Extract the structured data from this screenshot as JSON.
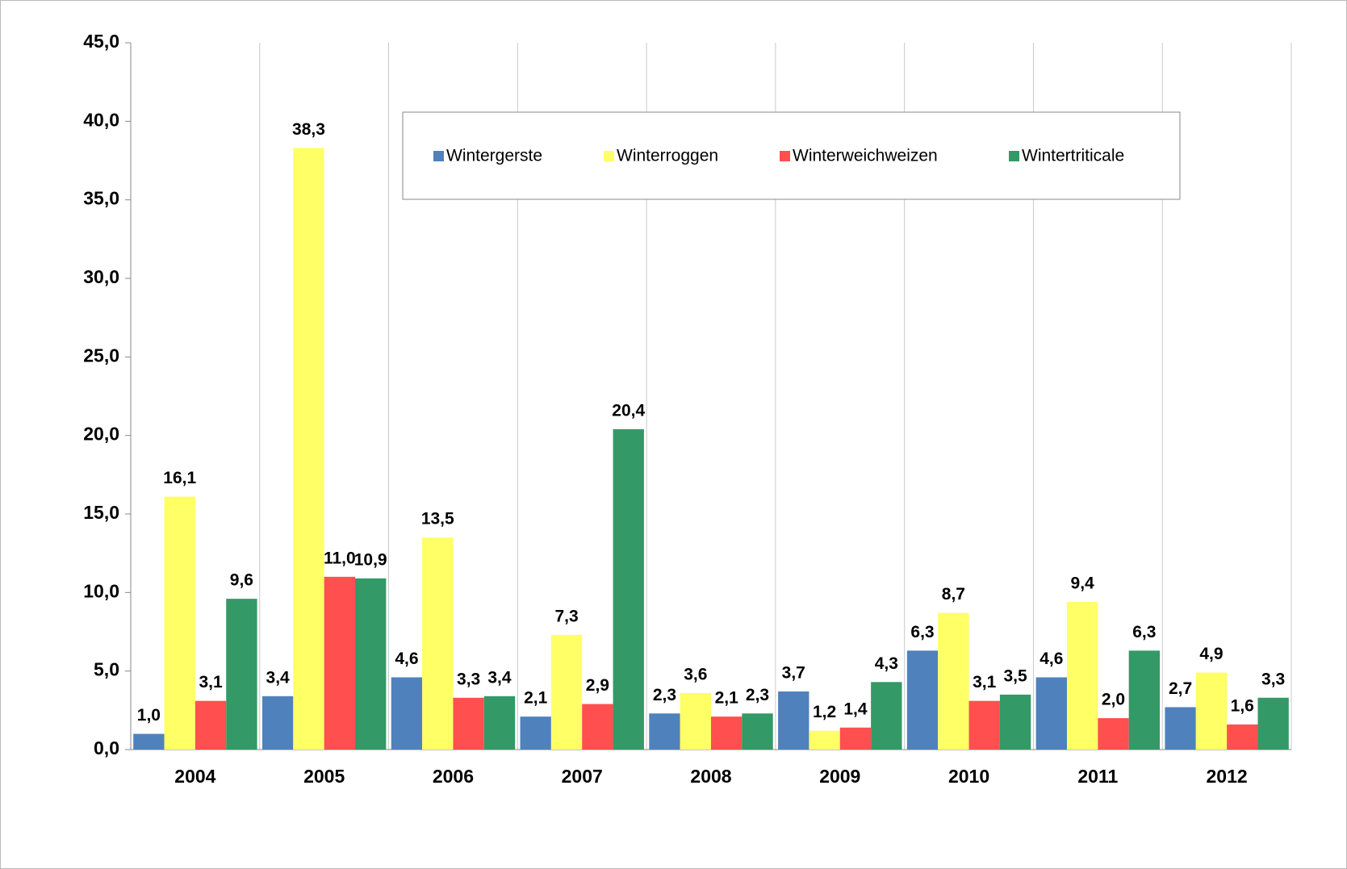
{
  "chart_data": {
    "type": "bar",
    "categories": [
      "2004",
      "2005",
      "2006",
      "2007",
      "2008",
      "2009",
      "2010",
      "2011",
      "2012"
    ],
    "series": [
      {
        "name": "Wintergerste",
        "color": "#4f81bd",
        "values": [
          1.0,
          3.4,
          4.6,
          2.1,
          2.3,
          3.7,
          6.3,
          4.6,
          2.7
        ],
        "value_labels": [
          "1,0",
          "3,4",
          "4,6",
          "2,1",
          "2,3",
          "3,7",
          "6,3",
          "4,6",
          "2,7"
        ]
      },
      {
        "name": "Winterroggen",
        "color": "#ffff66",
        "values": [
          16.1,
          38.3,
          13.5,
          7.3,
          3.6,
          1.2,
          8.7,
          9.4,
          4.9
        ],
        "value_labels": [
          "16,1",
          "38,3",
          "13,5",
          "7,3",
          "3,6",
          "1,2",
          "8,7",
          "9,4",
          "4,9"
        ]
      },
      {
        "name": "Winterweichweizen",
        "color": "#ff4f4f",
        "values": [
          3.1,
          11.0,
          3.3,
          2.9,
          2.1,
          1.4,
          3.1,
          2.0,
          1.6
        ],
        "value_labels": [
          "3,1",
          "11,0",
          "3,3",
          "2,9",
          "2,1",
          "1,4",
          "3,1",
          "2,0",
          "1,6"
        ]
      },
      {
        "name": "Wintertriticale",
        "color": "#339966",
        "values": [
          9.6,
          10.9,
          3.4,
          20.4,
          2.3,
          4.3,
          3.5,
          6.3,
          3.3
        ],
        "value_labels": [
          "9,6",
          "10,9",
          "3,4",
          "20,4",
          "2,3",
          "4,3",
          "3,5",
          "6,3",
          "3,3"
        ]
      }
    ],
    "ylim": [
      0,
      45
    ],
    "yticks": [
      {
        "value": 0,
        "label": "0,0"
      },
      {
        "value": 5,
        "label": "5,0"
      },
      {
        "value": 10,
        "label": "10,0"
      },
      {
        "value": 15,
        "label": "15,0"
      },
      {
        "value": 20,
        "label": "20,0"
      },
      {
        "value": 25,
        "label": "25,0"
      },
      {
        "value": 30,
        "label": "30,0"
      },
      {
        "value": 35,
        "label": "35,0"
      },
      {
        "value": 40,
        "label": "40,0"
      },
      {
        "value": 45,
        "label": "45,0"
      }
    ],
    "grid": true,
    "legend": "top"
  }
}
